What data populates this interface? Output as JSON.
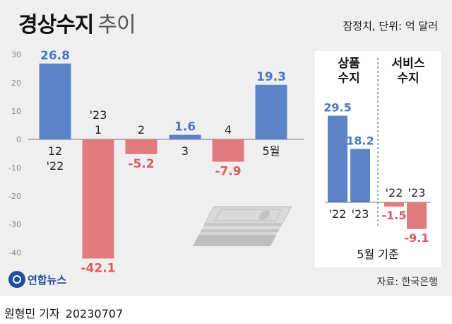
{
  "title": {
    "main": "경상수지",
    "sub": "추이"
  },
  "unit_note": "잠정치, 단위: 억 달러",
  "chart_data": [
    {
      "type": "bar",
      "categories": [
        "12\n'22",
        "'23\n1",
        "2",
        "3",
        "4",
        "5월"
      ],
      "values": [
        26.8,
        -42.1,
        -5.2,
        1.6,
        -7.9,
        19.3
      ],
      "value_labels": [
        "26.8",
        "-42.1",
        "-5.2",
        "1.6",
        "-7.9",
        "19.3"
      ],
      "ylim": [
        -45,
        33
      ],
      "yticks": [
        30,
        20,
        10,
        0,
        -10,
        -20,
        -30,
        -40
      ],
      "ytick_labels": [
        "30",
        "20",
        "10",
        "0",
        "-10",
        "-20",
        "-30",
        "-40"
      ],
      "colors": {
        "positive": "#5b84c9",
        "negative": "#e07c80",
        "positive_label": "#4a78c4",
        "negative_label": "#df5a60"
      },
      "grid": false
    },
    {
      "type": "bar",
      "groups": [
        {
          "name": "상품\n수지",
          "categories": [
            "'22",
            "'23"
          ],
          "values": [
            29.5,
            18.2
          ],
          "value_labels": [
            "29.5",
            "18.2"
          ]
        },
        {
          "name": "서비스\n수지",
          "categories": [
            "'22",
            "'23"
          ],
          "values": [
            -1.5,
            -9.1
          ],
          "value_labels": [
            "-1.5",
            "-9.1"
          ]
        }
      ],
      "note": "5월 기준"
    }
  ],
  "source": "자료: 한국은행",
  "logo_text": "연합뉴스",
  "credit": {
    "author": "원형민 기자",
    "date": "20230707"
  }
}
